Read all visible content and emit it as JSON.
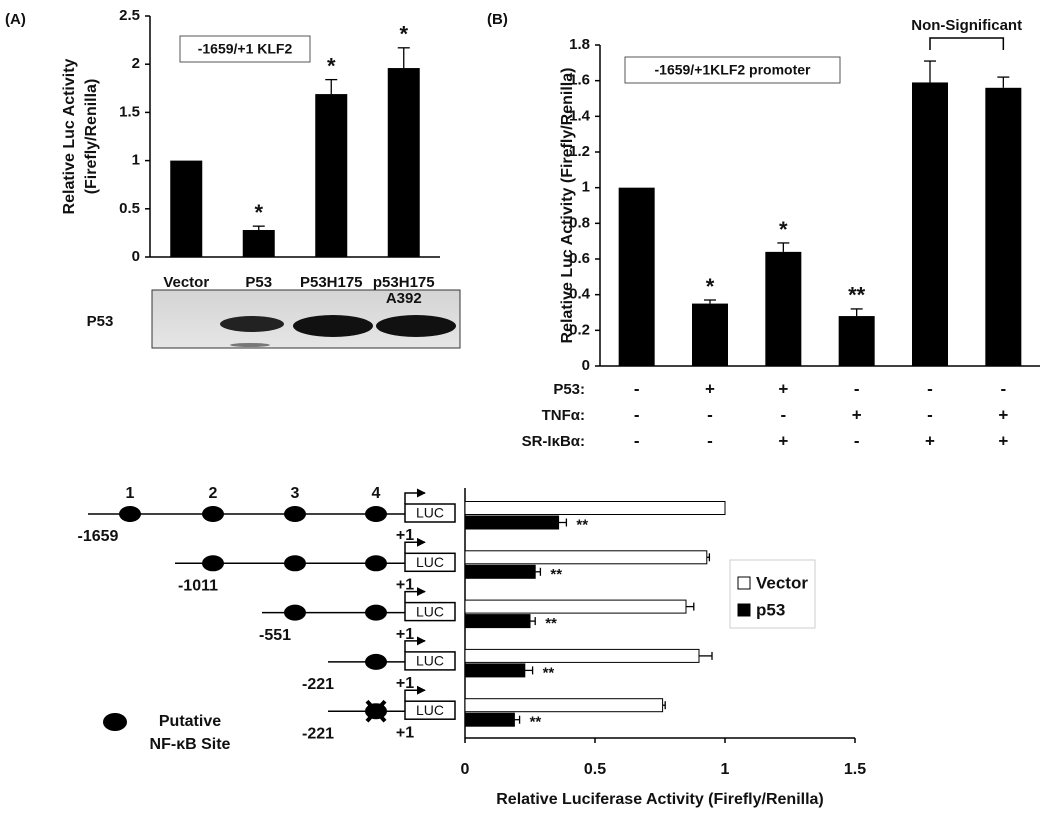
{
  "chart_data": [
    {
      "type": "bar",
      "panel_label": "(A)",
      "title": "-1659/+1 KLF2",
      "ylabel": [
        "Relative Luc Activity",
        "(Firefly/Renilla)"
      ],
      "categories": [
        "Vector",
        "P53",
        "P53H175",
        "p53H175 A392"
      ],
      "values": [
        1,
        0.28,
        1.69,
        1.96
      ],
      "errors": [
        0,
        0.04,
        0.15,
        0.21
      ],
      "annotations": [
        null,
        "*",
        "*",
        "*"
      ],
      "color": "#000000",
      "ylim": [
        0,
        2.5
      ],
      "yticks": [
        0,
        0.5,
        1,
        1.5,
        2,
        2.5
      ],
      "blot_label": "P53"
    },
    {
      "type": "bar",
      "panel_label": "(B)",
      "title": "-1659/+1KLF2 promoter",
      "ylabel": [
        "Relative Luc Activity (Firefly/Renilla)"
      ],
      "values": [
        1,
        0.35,
        0.64,
        0.28,
        1.59,
        1.56
      ],
      "errors": [
        0,
        0.02,
        0.05,
        0.04,
        0.12,
        0.06
      ],
      "annotations": [
        null,
        "*",
        "*",
        "**",
        null,
        null
      ],
      "color": "#000000",
      "bracket_label": "Non-Significant",
      "conditions": [
        {
          "name": "P53:",
          "signs": [
            "-",
            "+",
            "+",
            "-",
            "-",
            "-"
          ]
        },
        {
          "name": "TNFα:",
          "signs": [
            "-",
            "-",
            "-",
            "+",
            "-",
            "+"
          ]
        },
        {
          "name": "SR-IκBα:",
          "signs": [
            "-",
            "-",
            "+",
            "-",
            "+",
            "+"
          ]
        }
      ],
      "ylim": [
        0,
        1.8
      ],
      "yticks": [
        0,
        0.2,
        0.4,
        0.6,
        0.8,
        1,
        1.2,
        1.4,
        1.6,
        1.8
      ]
    },
    {
      "type": "hbar",
      "xlabel": "Relative Luciferase Activity (Firefly/Renilla)",
      "categories": [
        "-1659",
        "-1011",
        "-551",
        "-221",
        "-221"
      ],
      "series": [
        {
          "name": "Vector",
          "color": "#ffffff",
          "values": [
            1,
            0.93,
            0.85,
            0.9,
            0.76
          ],
          "errors": [
            0,
            0.01,
            0.03,
            0.05,
            0.01
          ]
        },
        {
          "name": "p53",
          "color": "#000000",
          "values": [
            0.36,
            0.27,
            0.25,
            0.23,
            0.19
          ],
          "errors": [
            0.03,
            0.02,
            0.02,
            0.03,
            0.02
          ],
          "annotations": [
            "**",
            "**",
            "**",
            "**",
            "**"
          ]
        }
      ],
      "xlim": [
        0,
        1.5
      ],
      "xticks": [
        0,
        0.5,
        1,
        1.5
      ],
      "diagram": {
        "site_numbers": [
          "1",
          "2",
          "3",
          "4"
        ],
        "reporter": "LUC",
        "start": "+1",
        "site_legend": [
          "Putative",
          "NF-κB Site"
        ]
      }
    }
  ]
}
